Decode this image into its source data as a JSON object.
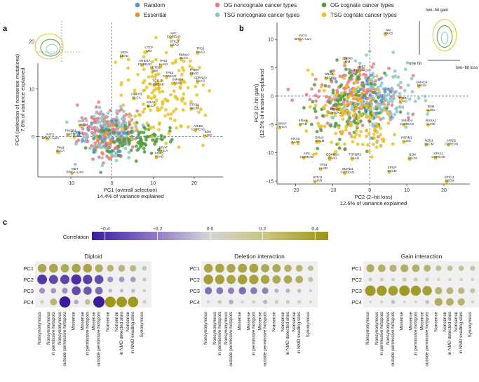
{
  "colors": {
    "random": "#5b8fc7",
    "essential": "#ee8a3a",
    "og_noncognate": "#e87b84",
    "og_cognate": "#4f9b3c",
    "tsg_noncognate": "#8cc6cc",
    "tsg_cognate": "#e8c22a",
    "corr_neg": "#3b1a9c",
    "corr_mid": "#d4d4d4",
    "corr_pos": "#9b9416"
  },
  "legend": {
    "items": [
      {
        "label": "Random",
        "color_key": "random"
      },
      {
        "label": "OG noncognate cancer types",
        "color_key": "og_noncognate"
      },
      {
        "label": "OG cognate cancer types",
        "color_key": "og_cognate"
      },
      {
        "label": "Essential",
        "color_key": "essential"
      },
      {
        "label": "TSG noncognate cancer types",
        "color_key": "tsg_noncognate"
      },
      {
        "label": "TSG cognate cancer types",
        "color_key": "tsg_cognate"
      }
    ]
  },
  "panel_letters": {
    "a": "a",
    "b": "b",
    "c": "c"
  },
  "inset_b": {
    "gain_label": "two–hit\ngain",
    "one_hit": "one\nhit",
    "loss_label": "two–hit\nloss"
  },
  "chart_data": [
    {
      "type": "scatter",
      "id": "panel-a",
      "xlabel_line1": "PC1 (overall selection)",
      "xlabel_line2": "14.4% of variance explained",
      "ylabel_line1": "PC4 (selection of nonsense mutations)",
      "ylabel_line2": "7.6% of variance explained",
      "xlim": [
        -18,
        27
      ],
      "ylim": [
        -8.5,
        24
      ],
      "xticks": [
        -10,
        0,
        10,
        20
      ],
      "yticks": [
        0,
        10,
        20
      ],
      "annotations": [
        {
          "text": "APC\nCOREAD",
          "x": 15,
          "y": 21.5
        },
        {
          "text": "CTCF\nMM",
          "x": 9,
          "y": 18.5
        },
        {
          "text": "STK11\nLUAD",
          "x": 15.2,
          "y": 19.8
        },
        {
          "text": "TP53\nPAAD",
          "x": 21.5,
          "y": 18.3
        },
        {
          "text": "MGA\nLUAD",
          "x": 3,
          "y": 17.5
        },
        {
          "text": "RBM10\nBLCA",
          "x": 17.5,
          "y": 17
        },
        {
          "text": "TP53\nLUAD",
          "x": 12.5,
          "y": 15.7
        },
        {
          "text": "ARID1A\nCOREAD",
          "x": 8,
          "y": 15.7
        },
        {
          "text": "SETD2\nMM",
          "x": 10.5,
          "y": 14.3
        },
        {
          "text": "PTEN\nPRAD",
          "x": 20,
          "y": 13.8
        },
        {
          "text": "TP53\nCOREAD",
          "x": 14,
          "y": 13.2
        },
        {
          "text": "CDKN2A\nPAAD",
          "x": 21.5,
          "y": 12.2
        },
        {
          "text": "TCTL2\nCOREAD",
          "x": 11,
          "y": 11.5
        },
        {
          "text": "SMAD4\nPAAD",
          "x": 16,
          "y": 11.8
        },
        {
          "text": "FGFR3\nBLCA",
          "x": 6,
          "y": 8.7
        },
        {
          "text": "KRAS\nBLCA",
          "x": 9.5,
          "y": 7
        },
        {
          "text": "STK11\nSKCM",
          "x": 20,
          "y": 6.5
        },
        {
          "text": "ARID2\nCOREAD",
          "x": 21,
          "y": 2
        },
        {
          "text": "B2M\nLUSC",
          "x": 23.3,
          "y": 0.8
        },
        {
          "text": "FAT4\nBRCA–Lum",
          "x": -15,
          "y": 0.2
        },
        {
          "text": "HLA–A\nSKCM",
          "x": -7,
          "y": 3
        },
        {
          "text": "PIK3R1\nSKCM",
          "x": -10,
          "y": 1
        },
        {
          "text": "TCF7L2\nLUAD",
          "x": -8.5,
          "y": 0.6
        },
        {
          "text": "PIM1\nBLCA",
          "x": -12.5,
          "y": -2.5
        },
        {
          "text": "MET\nBRCA–Lum",
          "x": -9,
          "y": -7
        },
        {
          "text": "BRAF\nTHCA",
          "x": 12.5,
          "y": -2.5
        },
        {
          "text": "KRAS\nPAAD",
          "x": 11.5,
          "y": -3.7
        }
      ]
    },
    {
      "type": "scatter",
      "id": "panel-b",
      "xlabel_line1": "PC2 (2–hit loss)",
      "xlabel_line2": "12.6% of variance explained",
      "ylabel_line1": "PC3 (2–hit gain)",
      "ylabel_line2": "(12.5% of variance explained",
      "xlim": [
        -25,
        27
      ],
      "ylim": [
        -15.5,
        13
      ],
      "xticks": [
        -20,
        -10,
        0,
        10,
        20
      ],
      "yticks": [
        -15,
        -10,
        -5,
        0,
        5,
        10
      ],
      "annotations": [
        {
          "text": "FAT4\nBRCA–Lum",
          "x": -18,
          "y": 10.5
        },
        {
          "text": "CIC\nPRAD",
          "x": 5,
          "y": 11.5
        },
        {
          "text": "ZFHX3\nMM",
          "x": -6,
          "y": 6.5
        },
        {
          "text": "MET\nBRCA–Lum",
          "x": -2,
          "y": 5
        },
        {
          "text": "NRAS\nSKCM",
          "x": -11,
          "y": 3.7
        },
        {
          "text": "SMAD4\nSKCM",
          "x": 14,
          "y": 2.3
        },
        {
          "text": "PTEN\nSTAD",
          "x": 9,
          "y": -0.5
        },
        {
          "text": "B2M\nLUSC",
          "x": 16.5,
          "y": -2
        },
        {
          "text": "KRAS\nCOREAD",
          "x": -9.5,
          "y": -2.5
        },
        {
          "text": "BRAF\nTHCA",
          "x": -23.5,
          "y": -5
        },
        {
          "text": "KRAS\nSTAD",
          "x": -18,
          "y": -4.5
        },
        {
          "text": "RASA1\nLUAD",
          "x": 16.5,
          "y": -4.5
        },
        {
          "text": "SMAD4\nCOREAD",
          "x": 10,
          "y": -4.5
        },
        {
          "text": "KRAS\nPAAD",
          "x": -20,
          "y": -7.7
        },
        {
          "text": "BRAF\nSKCM",
          "x": -13.5,
          "y": -7.5
        },
        {
          "text": "PBRM1\nLUSC",
          "x": 10,
          "y": -7.5
        },
        {
          "text": "NSD1\nSKCM",
          "x": 16,
          "y": -8
        },
        {
          "text": "ARID2\nCOREAD",
          "x": 22,
          "y": -8
        },
        {
          "text": "CDKN2A\nPAAD",
          "x": -10,
          "y": -10.5
        },
        {
          "text": "APC\nCOREAD",
          "x": -17,
          "y": -10.3
        },
        {
          "text": "TGFBR2\nPAAD",
          "x": -4,
          "y": -10.5
        },
        {
          "text": "B2M\nSKCM",
          "x": 11.5,
          "y": -10.5
        },
        {
          "text": "STK11\nCOREAD",
          "x": 18.5,
          "y": -10.3
        },
        {
          "text": "TP53\nLUAD",
          "x": -12.5,
          "y": -12.3
        },
        {
          "text": "SMAD4\nCOREAD",
          "x": -6,
          "y": -13
        },
        {
          "text": "SPOP\nSKCM",
          "x": 6,
          "y": -12.8
        },
        {
          "text": "STK11\nLUAD",
          "x": -14,
          "y": -14.5
        },
        {
          "text": "STK11\nSKCM",
          "x": 21.5,
          "y": -14.5
        }
      ]
    },
    {
      "type": "heatmap",
      "id": "panel-c",
      "colorbar_label": "Correlation",
      "colorbar_range": [
        -0.45,
        0.45
      ],
      "colorbar_ticks": [
        -0.4,
        -0.2,
        0.0,
        0.2,
        0.4
      ],
      "colorbar_tick_labels": [
        "−0.4",
        "−0.2",
        "0.0",
        "0.2",
        "0.4"
      ],
      "rows": [
        "PC1",
        "PC2",
        "PC3",
        "PC4"
      ],
      "columns": [
        "Nonsynonymous",
        "Nonsynonymous\nin permissive hotspots",
        "Nonsynonymous\noutside permissive hotspots",
        "Missense",
        "Missense\nin permissive hotspots",
        "Missense\noutside permissive hotspots",
        "Nonsense",
        "Nonsense\nin NMD detected sites",
        "Nonsense\nin NMD evading sites",
        "Synonymous"
      ],
      "groups": [
        {
          "title": "Diploid",
          "values": [
            [
              0.32,
              0.33,
              0.3,
              0.33,
              0.33,
              0.28,
              0.22,
              0.22,
              0.2,
              0.1
            ],
            [
              -0.38,
              -0.34,
              -0.35,
              -0.4,
              -0.36,
              -0.33,
              -0.16,
              -0.15,
              -0.14,
              -0.05
            ],
            [
              -0.16,
              -0.14,
              -0.16,
              -0.33,
              -0.3,
              -0.26,
              -0.06,
              -0.05,
              -0.06,
              -0.02
            ],
            [
              0.05,
              0.22,
              -0.45,
              -0.1,
              0.15,
              -0.46,
              0.43,
              0.42,
              0.42,
              0.05
            ]
          ]
        },
        {
          "title": "Deletion interaction",
          "values": [
            [
              0.33,
              0.34,
              0.32,
              0.34,
              0.34,
              0.3,
              0.3,
              0.25,
              0.22,
              0.15
            ],
            [
              0.37,
              0.36,
              0.34,
              0.37,
              0.36,
              0.33,
              0.3,
              0.3,
              0.26,
              0.12
            ],
            [
              -0.24,
              -0.22,
              -0.2,
              -0.25,
              -0.22,
              -0.2,
              -0.08,
              -0.08,
              -0.06,
              -0.02
            ],
            [
              0.02,
              0.06,
              -0.1,
              0.02,
              0.04,
              -0.08,
              0.06,
              0.06,
              0.05,
              0.02
            ]
          ]
        },
        {
          "title": "Gain interaction",
          "values": [
            [
              0.28,
              0.26,
              0.24,
              0.27,
              0.26,
              0.23,
              0.15,
              0.14,
              0.13,
              0.12
            ],
            [
              0.06,
              0.05,
              0.04,
              0.08,
              0.07,
              0.05,
              0.02,
              0.03,
              0.02,
              0.02
            ],
            [
              0.42,
              0.4,
              0.38,
              0.42,
              0.4,
              0.36,
              0.24,
              0.22,
              0.2,
              0.12
            ],
            [
              0.0,
              0.02,
              -0.06,
              0.0,
              0.01,
              -0.06,
              0.28,
              0.26,
              0.24,
              0.03
            ]
          ]
        }
      ]
    }
  ]
}
